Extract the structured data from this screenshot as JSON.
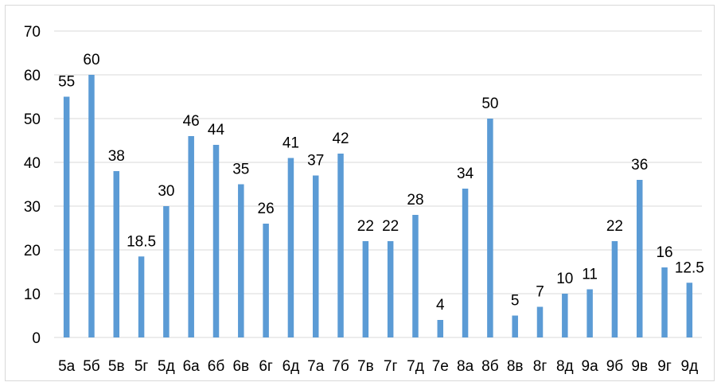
{
  "chart_data": {
    "type": "bar",
    "title": "",
    "xlabel": "",
    "ylabel": "",
    "categories": [
      "5а",
      "5б",
      "5в",
      "5г",
      "5д",
      "6а",
      "6б",
      "6в",
      "6г",
      "6д",
      "7а",
      "7б",
      "7в",
      "7г",
      "7д",
      "7е",
      "8а",
      "8б",
      "8в",
      "8г",
      "8д",
      "9а",
      "9б",
      "9в",
      "9г",
      "9д"
    ],
    "values": [
      55,
      60,
      38,
      18.5,
      30,
      46,
      44,
      35,
      26,
      41,
      37,
      42,
      22,
      22,
      28,
      4,
      34,
      50,
      5,
      7,
      10,
      11,
      22,
      36,
      16,
      12.5
    ],
    "data_labels": [
      "55",
      "60",
      "38",
      "18.5",
      "30",
      "46",
      "44",
      "35",
      "26",
      "41",
      "37",
      "42",
      "22",
      "22",
      "28",
      "4",
      "34",
      "50",
      "5",
      "7",
      "10",
      "11",
      "22",
      "36",
      "16",
      "12.5"
    ],
    "ylim": [
      0,
      70
    ],
    "yticks": [
      0,
      10,
      20,
      30,
      40,
      50,
      60,
      70
    ],
    "grid": true,
    "legend": "none",
    "bar_color": "#5b9bd5",
    "grid_color": "#d9d9d9"
  }
}
